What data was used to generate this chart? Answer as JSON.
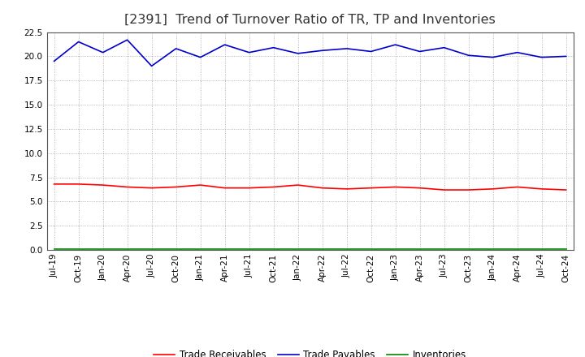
{
  "title": "[2391]  Trend of Turnover Ratio of TR, TP and Inventories",
  "x_labels": [
    "Jul-19",
    "Oct-19",
    "Jan-20",
    "Apr-20",
    "Jul-20",
    "Oct-20",
    "Jan-21",
    "Apr-21",
    "Jul-21",
    "Oct-21",
    "Jan-22",
    "Apr-22",
    "Jul-22",
    "Oct-22",
    "Jan-23",
    "Apr-23",
    "Jul-23",
    "Oct-23",
    "Jan-24",
    "Apr-24",
    "Jul-24",
    "Oct-24"
  ],
  "trade_receivables": [
    6.8,
    6.8,
    6.7,
    6.5,
    6.4,
    6.5,
    6.7,
    6.4,
    6.4,
    6.5,
    6.7,
    6.4,
    6.3,
    6.4,
    6.5,
    6.4,
    6.2,
    6.2,
    6.3,
    6.5,
    6.3,
    6.2
  ],
  "trade_payables": [
    19.5,
    21.5,
    20.4,
    21.7,
    19.0,
    20.8,
    19.9,
    21.2,
    20.4,
    20.9,
    20.3,
    20.6,
    20.8,
    20.5,
    21.2,
    20.5,
    20.9,
    20.1,
    19.9,
    20.4,
    19.9,
    20.0
  ],
  "inventories": [
    0.05,
    0.05,
    0.05,
    0.05,
    0.05,
    0.05,
    0.05,
    0.05,
    0.05,
    0.05,
    0.05,
    0.05,
    0.05,
    0.05,
    0.05,
    0.05,
    0.05,
    0.05,
    0.05,
    0.05,
    0.05,
    0.05
  ],
  "tr_color": "#ff0000",
  "tp_color": "#0000cc",
  "inv_color": "#008800",
  "ylim": [
    0.0,
    22.5
  ],
  "yticks": [
    0.0,
    2.5,
    5.0,
    7.5,
    10.0,
    12.5,
    15.0,
    17.5,
    20.0,
    22.5
  ],
  "background_color": "#ffffff",
  "grid_color": "#999999",
  "title_fontsize": 11.5,
  "tick_fontsize": 7.5,
  "legend_labels": [
    "Trade Receivables",
    "Trade Payables",
    "Inventories"
  ]
}
